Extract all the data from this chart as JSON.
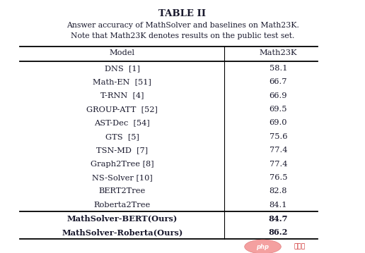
{
  "title": "TABLE II",
  "subtitle1": "Answer accuracy of MathSolver and baselines on Math23K.",
  "subtitle2": "Note that Math23K denotes results on the public test set.",
  "col_headers": [
    "Model",
    "Math23K"
  ],
  "rows": [
    [
      "DNS  [1]",
      "58.1",
      false
    ],
    [
      "Math-EN  [51]",
      "66.7",
      false
    ],
    [
      "T-RNN  [4]",
      "66.9",
      false
    ],
    [
      "GROUP-ATT  [52]",
      "69.5",
      false
    ],
    [
      "AST-Dec  [54]",
      "69.0",
      false
    ],
    [
      "GTS  [5]",
      "75.6",
      false
    ],
    [
      "TSN-MD  [7]",
      "77.4",
      false
    ],
    [
      "Graph2Tree [8]",
      "77.4",
      false
    ],
    [
      "NS-Solver [10]",
      "76.5",
      false
    ],
    [
      "BERT2Tree",
      "82.8",
      false
    ],
    [
      "Roberta2Tree",
      "84.1",
      false
    ],
    [
      "MathSolver-BERT(Ours)",
      "84.7",
      true
    ],
    [
      "MathSolver-Roberta(Ours)",
      "86.2",
      true
    ]
  ],
  "bg_color": "#ffffff",
  "text_color": "#1a1a2e",
  "title_color": "#1a1a2e",
  "separator_row": 11,
  "fig_width": 5.16,
  "fig_height": 3.59,
  "dpi": 100
}
